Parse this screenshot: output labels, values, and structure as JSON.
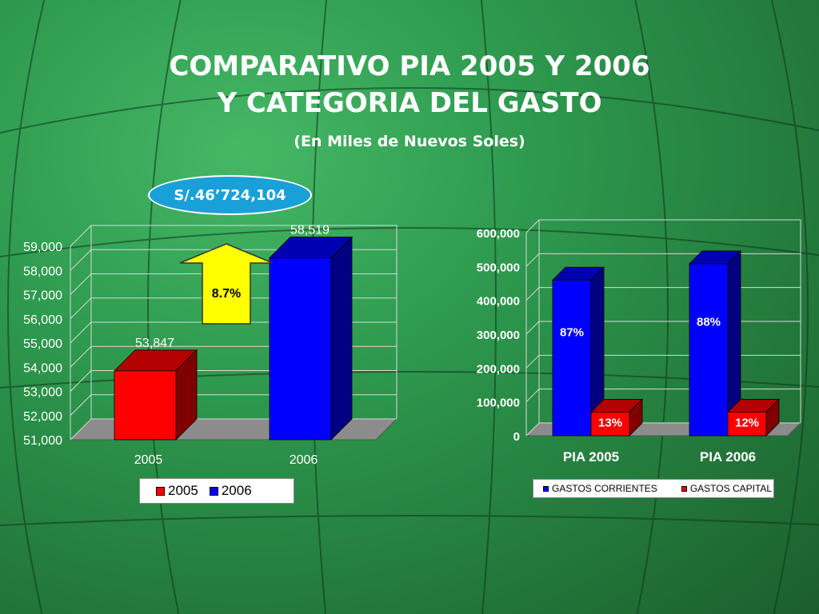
{
  "title_line1": "COMPARATIVO PIA 2005 Y 2006",
  "title_line2": "Y CATEGORIA DEL GASTO",
  "subtitle": "(En Miles de Nuevos Soles)",
  "badge_text": "S/.46’724,104",
  "arrow_label": "8.7%",
  "colors": {
    "red": "#ff0000",
    "blue": "#0000ff",
    "arrow": "#ffff00"
  },
  "chart_data": [
    {
      "type": "bar",
      "categories": [
        "2005",
        "2006"
      ],
      "values": [
        53847,
        58519
      ],
      "value_labels": [
        "53,847",
        "58,519"
      ],
      "ylim": [
        51000,
        59000
      ],
      "yticks": [
        "51,000",
        "52,000",
        "53,000",
        "54,000",
        "55,000",
        "56,000",
        "57,000",
        "58,000",
        "59,000"
      ],
      "legend": [
        "2005",
        "2006"
      ],
      "legend_placement": "bottom",
      "grid": true
    },
    {
      "type": "bar",
      "categories": [
        "PIA 2005",
        "PIA 2006"
      ],
      "series": [
        {
          "name": "GASTOS CORRIENTES",
          "values": [
            460000,
            508000
          ],
          "labels": [
            "87%",
            "88%"
          ]
        },
        {
          "name": "GASTOS CAPITAL",
          "values": [
            70000,
            70000
          ],
          "labels": [
            "13%",
            "12%"
          ]
        }
      ],
      "ylim": [
        0,
        600000
      ],
      "yticks": [
        "0",
        "100,000",
        "200,000",
        "300,000",
        "400,000",
        "500,000",
        "600,000"
      ],
      "legend_placement": "bottom",
      "grid": true
    }
  ]
}
